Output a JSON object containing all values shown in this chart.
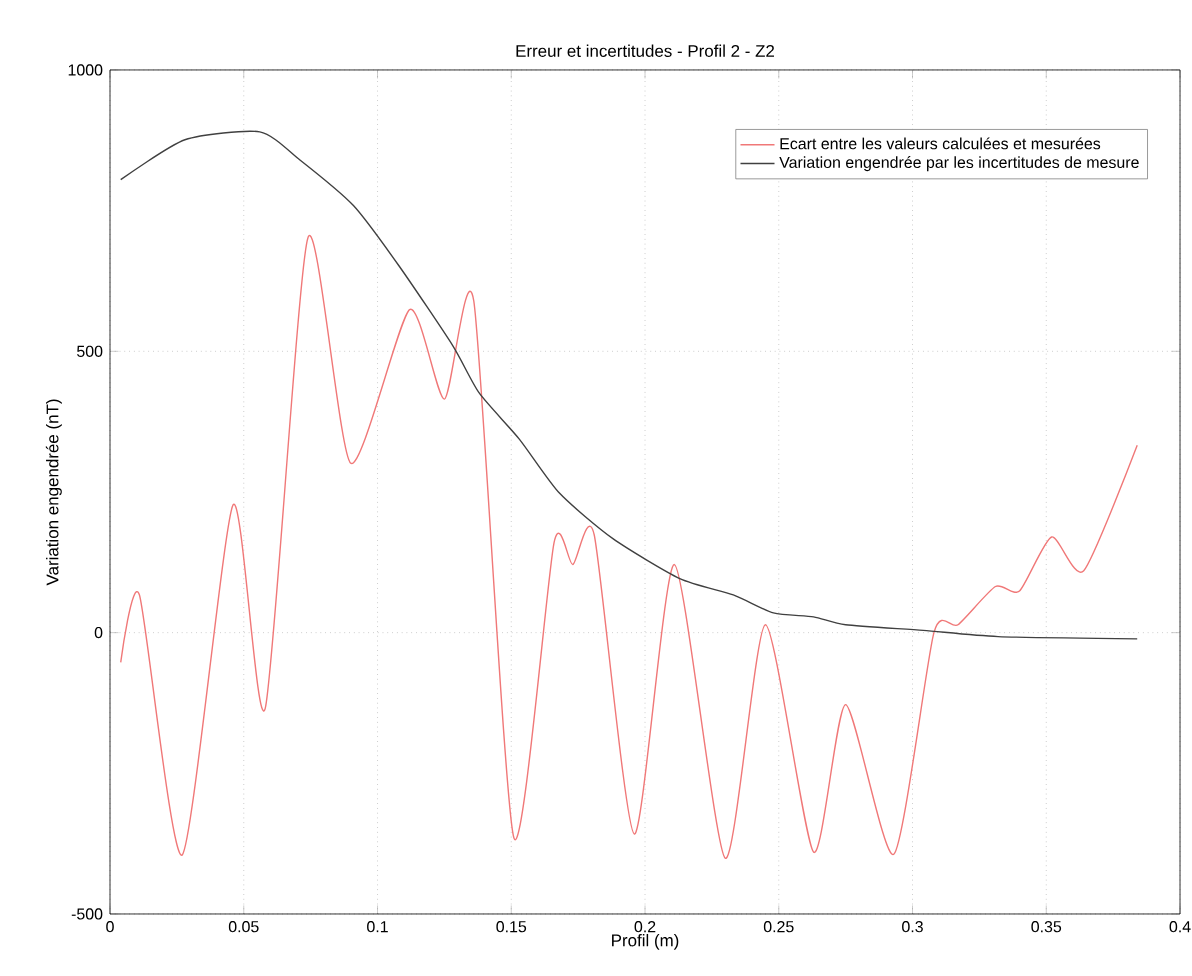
{
  "chart_data": {
    "type": "line",
    "title": "Erreur et incertitudes - Profil 2 - Z2",
    "xlabel": "Profil (m)",
    "ylabel": "Variation engendrée (nT)",
    "xlim": [
      0,
      0.4
    ],
    "ylim": [
      -500,
      1000
    ],
    "xticks": [
      0,
      0.05,
      0.1,
      0.15,
      0.2,
      0.25,
      0.3,
      0.35,
      0.4
    ],
    "yticks": [
      -500,
      0,
      500,
      1000
    ],
    "grid": true,
    "legend": "top right",
    "line_style": "solid",
    "marker": "none",
    "series": [
      {
        "name": "Ecart entre les valeurs calculées et mesurées",
        "color": "#f07878",
        "x": [
          0.004,
          0.011,
          0.027,
          0.046,
          0.058,
          0.074,
          0.09,
          0.112,
          0.125,
          0.136,
          0.151,
          0.166,
          0.173,
          0.181,
          0.196,
          0.211,
          0.23,
          0.245,
          0.263,
          0.275,
          0.293,
          0.308,
          0.317,
          0.331,
          0.34,
          0.352,
          0.364,
          0.384
        ],
        "values": [
          -53,
          67,
          -395,
          227,
          -135,
          702,
          301,
          574,
          415,
          589,
          -365,
          160,
          121,
          174,
          -358,
          121,
          -401,
          14,
          -390,
          -128,
          -394,
          0,
          14,
          82,
          74,
          170,
          110,
          333
        ]
      },
      {
        "name": "Variation engendrée par les incertitudes de mesure",
        "color": "#404040",
        "x": [
          0.004,
          0.028,
          0.056,
          0.071,
          0.091,
          0.108,
          0.128,
          0.138,
          0.153,
          0.168,
          0.188,
          0.213,
          0.233,
          0.248,
          0.263,
          0.275,
          0.304,
          0.332,
          0.384
        ],
        "values": [
          805,
          876,
          890,
          840,
          759,
          652,
          511,
          426,
          344,
          248,
          167,
          96,
          67,
          35,
          28,
          14,
          4,
          -7,
          -11
        ]
      }
    ]
  }
}
